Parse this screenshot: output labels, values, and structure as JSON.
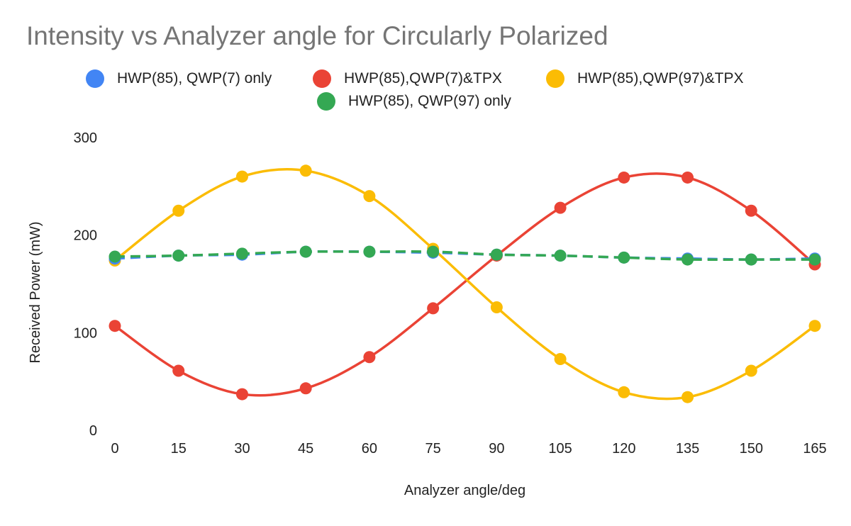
{
  "chart_data": {
    "type": "scatter",
    "title": "Intensity vs Analyzer angle for Circularly Polarized",
    "xlabel": "Analyzer angle/deg",
    "ylabel": "Received Power (mW)",
    "x": [
      0,
      15,
      30,
      45,
      60,
      75,
      90,
      105,
      120,
      135,
      150,
      165
    ],
    "xticks": [
      "0",
      "15",
      "30",
      "45",
      "60",
      "75",
      "90",
      "105",
      "120",
      "135",
      "150",
      "165"
    ],
    "yticks": [
      "0",
      "100",
      "200",
      "300"
    ],
    "ylim": [
      0,
      300
    ],
    "grid": false,
    "legend_position": "top",
    "series": [
      {
        "name": "HWP(85), QWP(7) only",
        "color": "#4285F4",
        "dashed": true,
        "values": [
          176,
          179,
          180,
          183,
          183,
          182,
          180,
          179,
          177,
          176,
          175,
          176
        ]
      },
      {
        "name": "HWP(85),QWP(7)&TPX",
        "color": "#EA4335",
        "dashed": false,
        "values": [
          107,
          61,
          37,
          43,
          75,
          125,
          179,
          228,
          259,
          259,
          225,
          170
        ]
      },
      {
        "name": "HWP(85),QWP(97)&TPX",
        "color": "#FBBC04",
        "dashed": false,
        "values": [
          174,
          225,
          260,
          266,
          240,
          186,
          126,
          73,
          39,
          34,
          61,
          107
        ]
      },
      {
        "name": "HWP(85), QWP(97) only",
        "color": "#34A853",
        "dashed": true,
        "values": [
          178,
          179,
          181,
          183,
          183,
          183,
          180,
          179,
          177,
          175,
          175,
          175
        ]
      }
    ]
  }
}
